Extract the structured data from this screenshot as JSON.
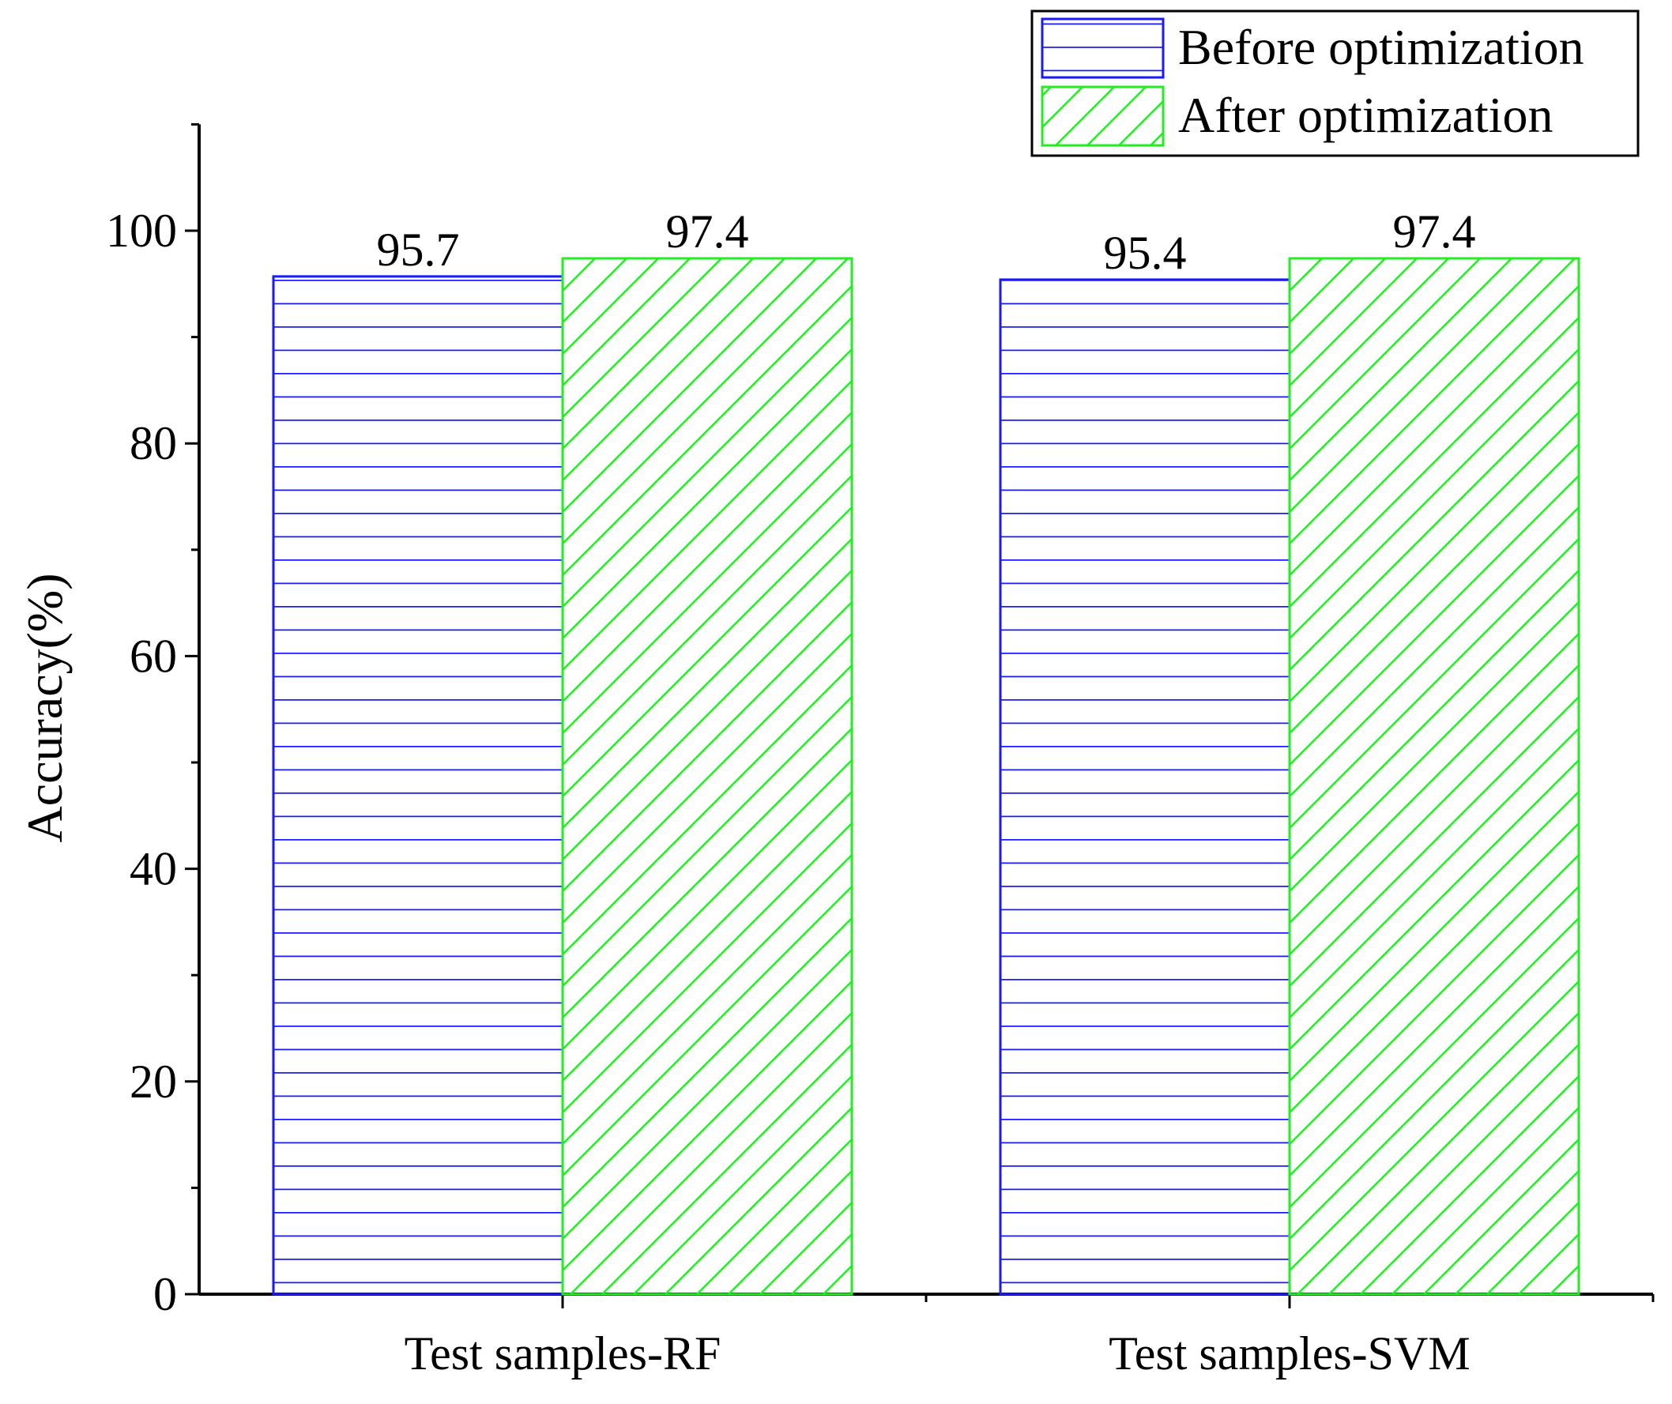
{
  "chart_data": {
    "type": "bar",
    "title": "",
    "xlabel": "",
    "ylabel": "Accuracy(%)",
    "ylim": [
      0,
      110
    ],
    "yticks": [
      0,
      20,
      40,
      60,
      80,
      100
    ],
    "grid": false,
    "legend_position": "top-right",
    "categories": [
      "Test samples-RF",
      "Test samples-SVM"
    ],
    "series": [
      {
        "name": "Before optimization",
        "values": [
          95.7,
          95.4
        ],
        "value_labels": [
          "95.7",
          "95.4"
        ],
        "color": "#1a1aff",
        "pattern": "horizontal-lines"
      },
      {
        "name": "After optimization",
        "values": [
          97.4,
          97.4
        ],
        "value_labels": [
          "97.4",
          "97.4"
        ],
        "color": "#22ee22",
        "pattern": "diagonal-lines"
      }
    ]
  }
}
